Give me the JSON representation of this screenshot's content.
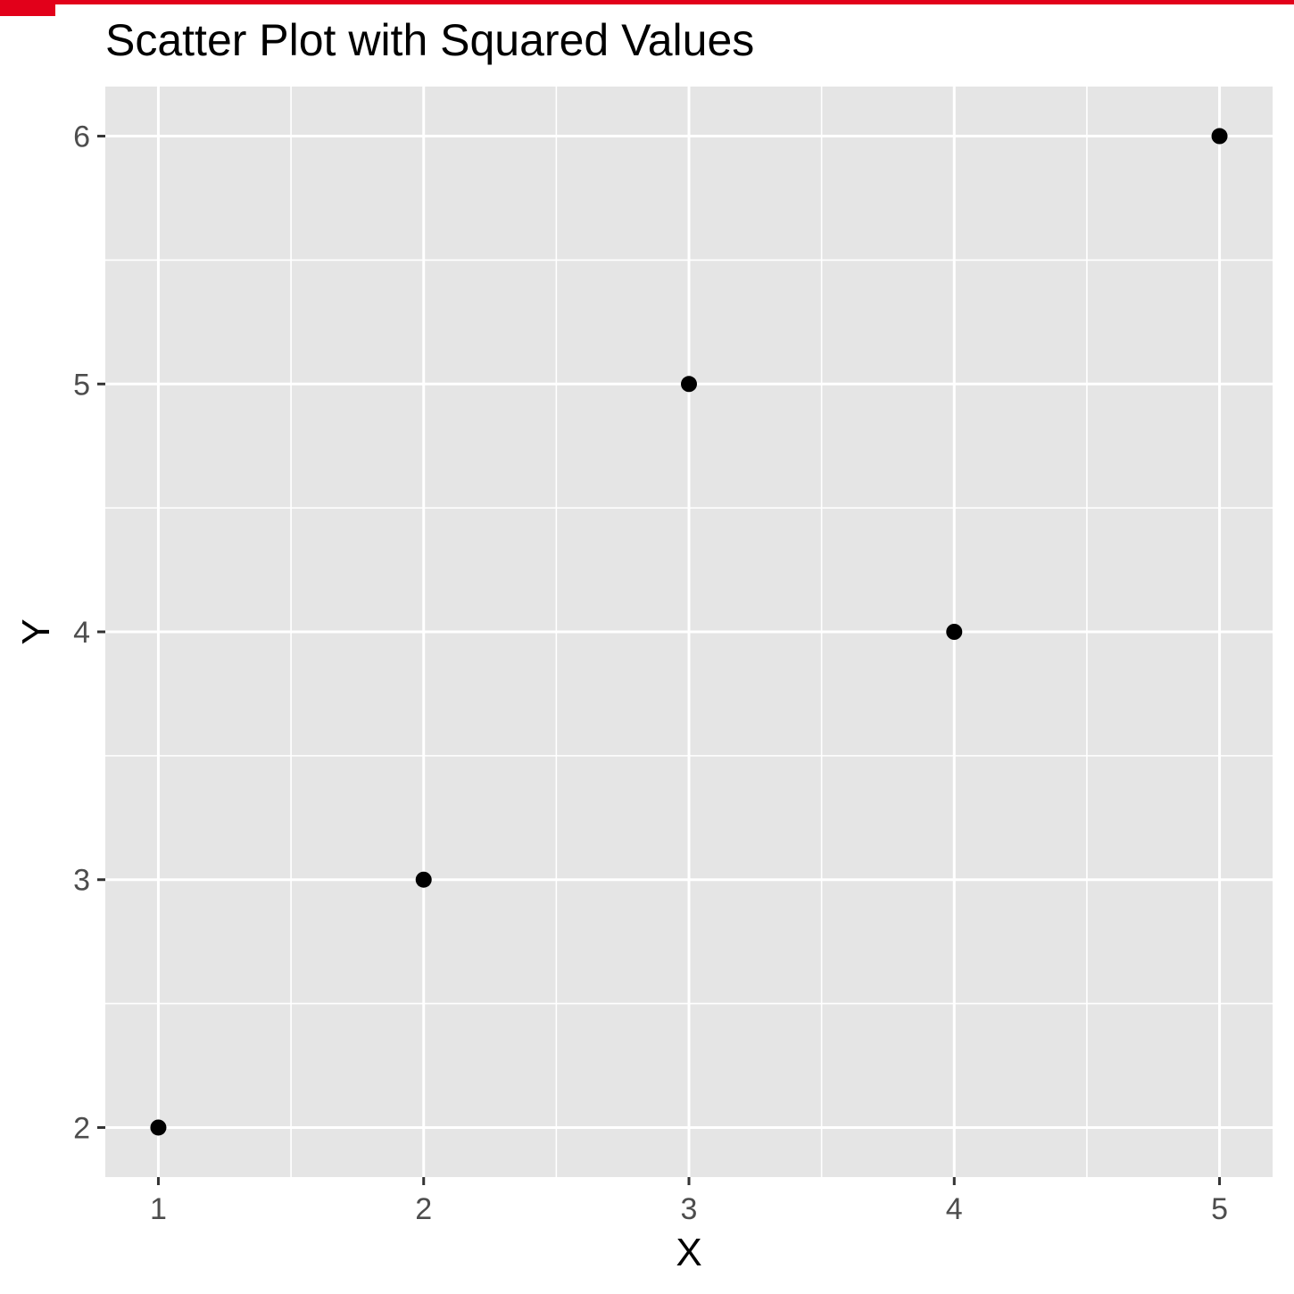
{
  "colors": {
    "panel_background": "#e5e5e5",
    "grid": "#ffffff",
    "point": "#000000",
    "tick": "#333333",
    "tick_label": "#4d4d4d",
    "top_bar": "#e2001a"
  },
  "chart_data": {
    "type": "scatter",
    "title": "Scatter Plot with Squared Values",
    "xlabel": "X",
    "ylabel": "Y",
    "x": [
      1,
      2,
      3,
      4,
      5
    ],
    "y": [
      2,
      3,
      5,
      4,
      6
    ],
    "xlim": [
      0.8,
      5.2
    ],
    "ylim": [
      1.8,
      6.2
    ],
    "xticks": [
      1,
      2,
      3,
      4,
      5
    ],
    "yticks": [
      2,
      3,
      4,
      5,
      6
    ],
    "grid": true,
    "legend": "none"
  }
}
